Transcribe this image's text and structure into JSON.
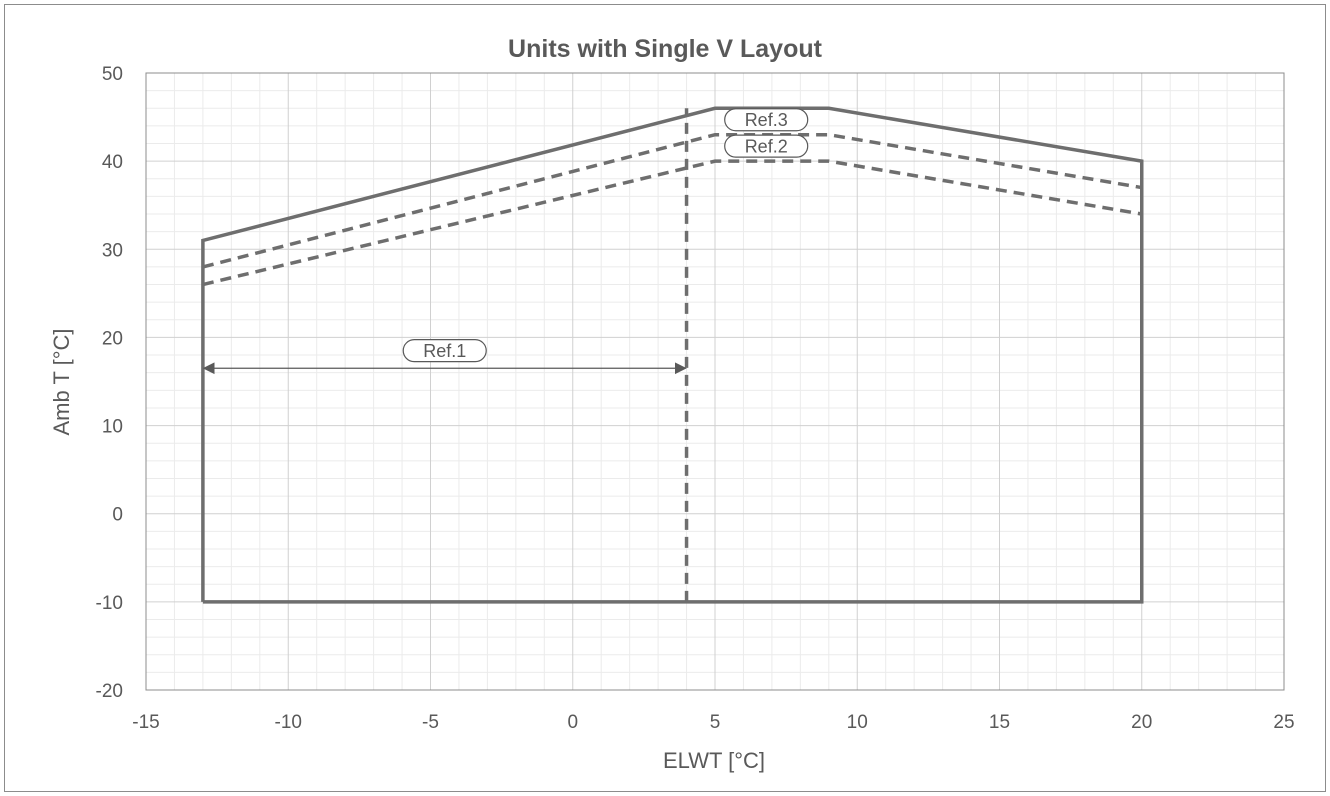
{
  "chart_data": {
    "type": "line",
    "title": "Units with Single V Layout",
    "xlabel": "ELWT [°C]",
    "ylabel": "Amb T [°C]",
    "xlim": [
      -15,
      25
    ],
    "ylim": [
      -20,
      50
    ],
    "x_ticks": [
      -15,
      -10,
      -5,
      0,
      5,
      10,
      15,
      20,
      25
    ],
    "y_ticks": [
      -20,
      -10,
      0,
      10,
      20,
      30,
      40,
      50
    ],
    "x_minor_step": 1,
    "y_minor_step": 2,
    "grid": true,
    "legend": "none",
    "colors": {
      "line": "#6e6e6e",
      "major_grid": "#d0d0d0",
      "minor_grid": "#ebebeb",
      "axis": "#8c8c8c",
      "text": "#595959"
    },
    "series": [
      {
        "style": "solid",
        "x": [
          -13,
          -13,
          5,
          9,
          20,
          20,
          -13
        ],
        "y": [
          -10,
          31,
          46,
          46,
          40,
          -10,
          -10
        ]
      },
      {
        "style": "dashed",
        "x": [
          -13,
          5,
          9,
          20
        ],
        "y": [
          28,
          43,
          43,
          37
        ]
      },
      {
        "style": "dashed",
        "x": [
          -13,
          5,
          9,
          20
        ],
        "y": [
          26,
          40,
          40,
          34
        ]
      },
      {
        "style": "dashed",
        "x": [
          4,
          4
        ],
        "y": [
          -10,
          46
        ]
      }
    ],
    "annotations": [
      {
        "text": "Ref.1",
        "type": "double-arrow",
        "x_from": -13,
        "x_to": 4,
        "y": 16.5,
        "label_x": -4.5,
        "label_y": 18.5
      },
      {
        "text": "Ref.2",
        "type": "label",
        "label_x": 6.8,
        "label_y": 41.7
      },
      {
        "text": "Ref.3",
        "type": "label",
        "label_x": 6.8,
        "label_y": 44.7
      }
    ]
  }
}
